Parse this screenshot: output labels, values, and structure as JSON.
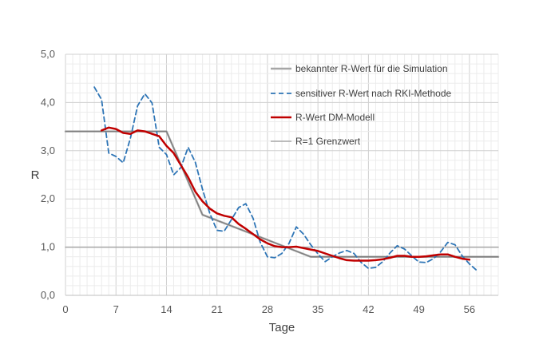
{
  "chart_data": {
    "type": "line",
    "title": "",
    "xlabel": "Tage",
    "ylabel": "R",
    "xlim": [
      0,
      60
    ],
    "ylim": [
      0,
      5
    ],
    "x_ticks": [
      0,
      7,
      14,
      21,
      28,
      35,
      42,
      49,
      56
    ],
    "y_ticks": [
      "0,0",
      "1,0",
      "2,0",
      "3,0",
      "4,0",
      "5,0"
    ],
    "grid": true,
    "legend_position": "top-right",
    "series": [
      {
        "name": "bekannter R-Wert für die Simulation",
        "style": "solid",
        "color": "#a6a6a6",
        "points": [
          [
            0,
            3.4
          ],
          [
            14,
            3.4
          ],
          [
            19,
            1.67
          ],
          [
            28,
            1.15
          ],
          [
            34,
            0.8
          ],
          [
            60,
            0.8
          ]
        ]
      },
      {
        "name": "sensitiver R-Wert nach RKI-Methode",
        "style": "dashed",
        "color": "#2e75b6",
        "points": [
          [
            4,
            4.32
          ],
          [
            5,
            4.06
          ],
          [
            6,
            2.95
          ],
          [
            7,
            2.88
          ],
          [
            8,
            2.75
          ],
          [
            9,
            3.26
          ],
          [
            10,
            3.93
          ],
          [
            11,
            4.18
          ],
          [
            12,
            3.99
          ],
          [
            13,
            3.07
          ],
          [
            14,
            2.92
          ],
          [
            15,
            2.5
          ],
          [
            16,
            2.65
          ],
          [
            17,
            3.07
          ],
          [
            18,
            2.76
          ],
          [
            19,
            2.2
          ],
          [
            20,
            1.7
          ],
          [
            21,
            1.35
          ],
          [
            22,
            1.33
          ],
          [
            23,
            1.57
          ],
          [
            24,
            1.82
          ],
          [
            25,
            1.9
          ],
          [
            26,
            1.6
          ],
          [
            27,
            1.1
          ],
          [
            28,
            0.8
          ],
          [
            29,
            0.78
          ],
          [
            30,
            0.87
          ],
          [
            31,
            1.08
          ],
          [
            32,
            1.42
          ],
          [
            33,
            1.27
          ],
          [
            34,
            1.05
          ],
          [
            35,
            0.86
          ],
          [
            36,
            0.7
          ],
          [
            37,
            0.8
          ],
          [
            38,
            0.88
          ],
          [
            39,
            0.93
          ],
          [
            40,
            0.87
          ],
          [
            41,
            0.68
          ],
          [
            42,
            0.56
          ],
          [
            43,
            0.58
          ],
          [
            44,
            0.7
          ],
          [
            45,
            0.88
          ],
          [
            46,
            1.03
          ],
          [
            47,
            0.96
          ],
          [
            48,
            0.82
          ],
          [
            49,
            0.69
          ],
          [
            50,
            0.68
          ],
          [
            51,
            0.76
          ],
          [
            52,
            0.9
          ],
          [
            53,
            1.1
          ],
          [
            54,
            1.05
          ],
          [
            55,
            0.82
          ],
          [
            56,
            0.65
          ],
          [
            57,
            0.52
          ]
        ]
      },
      {
        "name": "R-Wert DM-Modell",
        "style": "solid",
        "color": "#c00000",
        "points": [
          [
            5,
            3.42
          ],
          [
            6,
            3.48
          ],
          [
            7,
            3.45
          ],
          [
            8,
            3.37
          ],
          [
            9,
            3.35
          ],
          [
            10,
            3.42
          ],
          [
            11,
            3.4
          ],
          [
            12,
            3.35
          ],
          [
            13,
            3.3
          ],
          [
            14,
            3.1
          ],
          [
            15,
            2.95
          ],
          [
            16,
            2.7
          ],
          [
            17,
            2.45
          ],
          [
            18,
            2.15
          ],
          [
            19,
            1.95
          ],
          [
            20,
            1.8
          ],
          [
            21,
            1.7
          ],
          [
            22,
            1.65
          ],
          [
            23,
            1.62
          ],
          [
            24,
            1.48
          ],
          [
            25,
            1.38
          ],
          [
            26,
            1.27
          ],
          [
            27,
            1.16
          ],
          [
            28,
            1.08
          ],
          [
            29,
            1.02
          ],
          [
            30,
            1.0
          ],
          [
            31,
            1.0
          ],
          [
            32,
            1.01
          ],
          [
            33,
            0.98
          ],
          [
            34,
            0.95
          ],
          [
            35,
            0.92
          ],
          [
            36,
            0.87
          ],
          [
            37,
            0.82
          ],
          [
            38,
            0.77
          ],
          [
            39,
            0.73
          ],
          [
            40,
            0.72
          ],
          [
            41,
            0.72
          ],
          [
            42,
            0.72
          ],
          [
            43,
            0.73
          ],
          [
            44,
            0.75
          ],
          [
            45,
            0.78
          ],
          [
            46,
            0.82
          ],
          [
            47,
            0.82
          ],
          [
            48,
            0.8
          ],
          [
            49,
            0.8
          ],
          [
            50,
            0.81
          ],
          [
            51,
            0.83
          ],
          [
            52,
            0.85
          ],
          [
            53,
            0.85
          ],
          [
            54,
            0.8
          ],
          [
            55,
            0.76
          ],
          [
            56,
            0.74
          ]
        ]
      },
      {
        "name": "R=1 Grenzwert",
        "style": "solid",
        "color": "#a6a6a6",
        "points": [
          [
            0,
            1.0
          ],
          [
            60,
            1.0
          ]
        ]
      }
    ]
  }
}
